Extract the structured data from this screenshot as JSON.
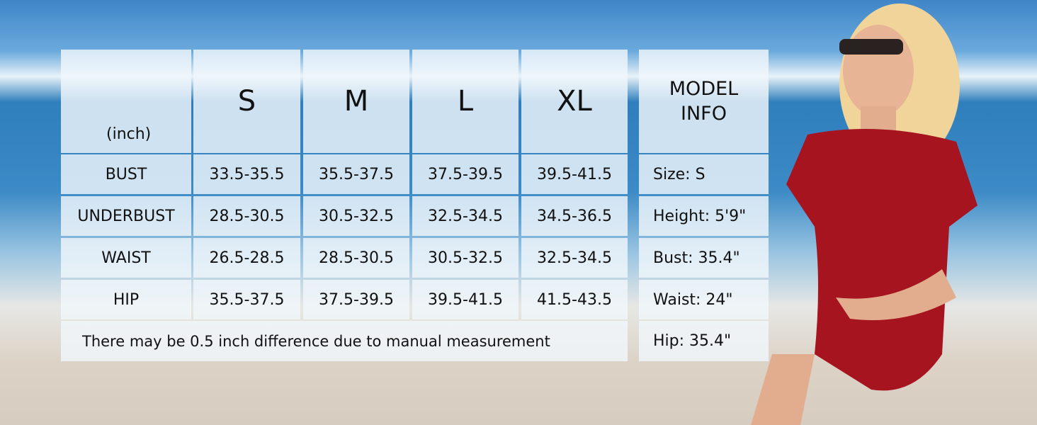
{
  "table": {
    "unit": "(inch)",
    "sizes": [
      "S",
      "M",
      "L",
      "XL"
    ],
    "rows": [
      {
        "label": "BUST",
        "values": [
          "33.5-35.5",
          "35.5-37.5",
          "37.5-39.5",
          "39.5-41.5"
        ]
      },
      {
        "label": "UNDERBUST",
        "values": [
          "28.5-30.5",
          "30.5-32.5",
          "32.5-34.5",
          "34.5-36.5"
        ]
      },
      {
        "label": "WAIST",
        "values": [
          "26.5-28.5",
          "28.5-30.5",
          "30.5-32.5",
          "32.5-34.5"
        ]
      },
      {
        "label": "HIP",
        "values": [
          "35.5-37.5",
          "37.5-39.5",
          "39.5-41.5",
          "41.5-43.5"
        ]
      }
    ],
    "note": "There may be 0.5 inch difference due to manual measurement"
  },
  "model_info": {
    "title": "MODEL INFO",
    "items": [
      "Size: S",
      "Height: 5'9\"",
      "Bust: 35.4\"",
      "Waist: 24\"",
      "Hip: 35.4\""
    ]
  }
}
